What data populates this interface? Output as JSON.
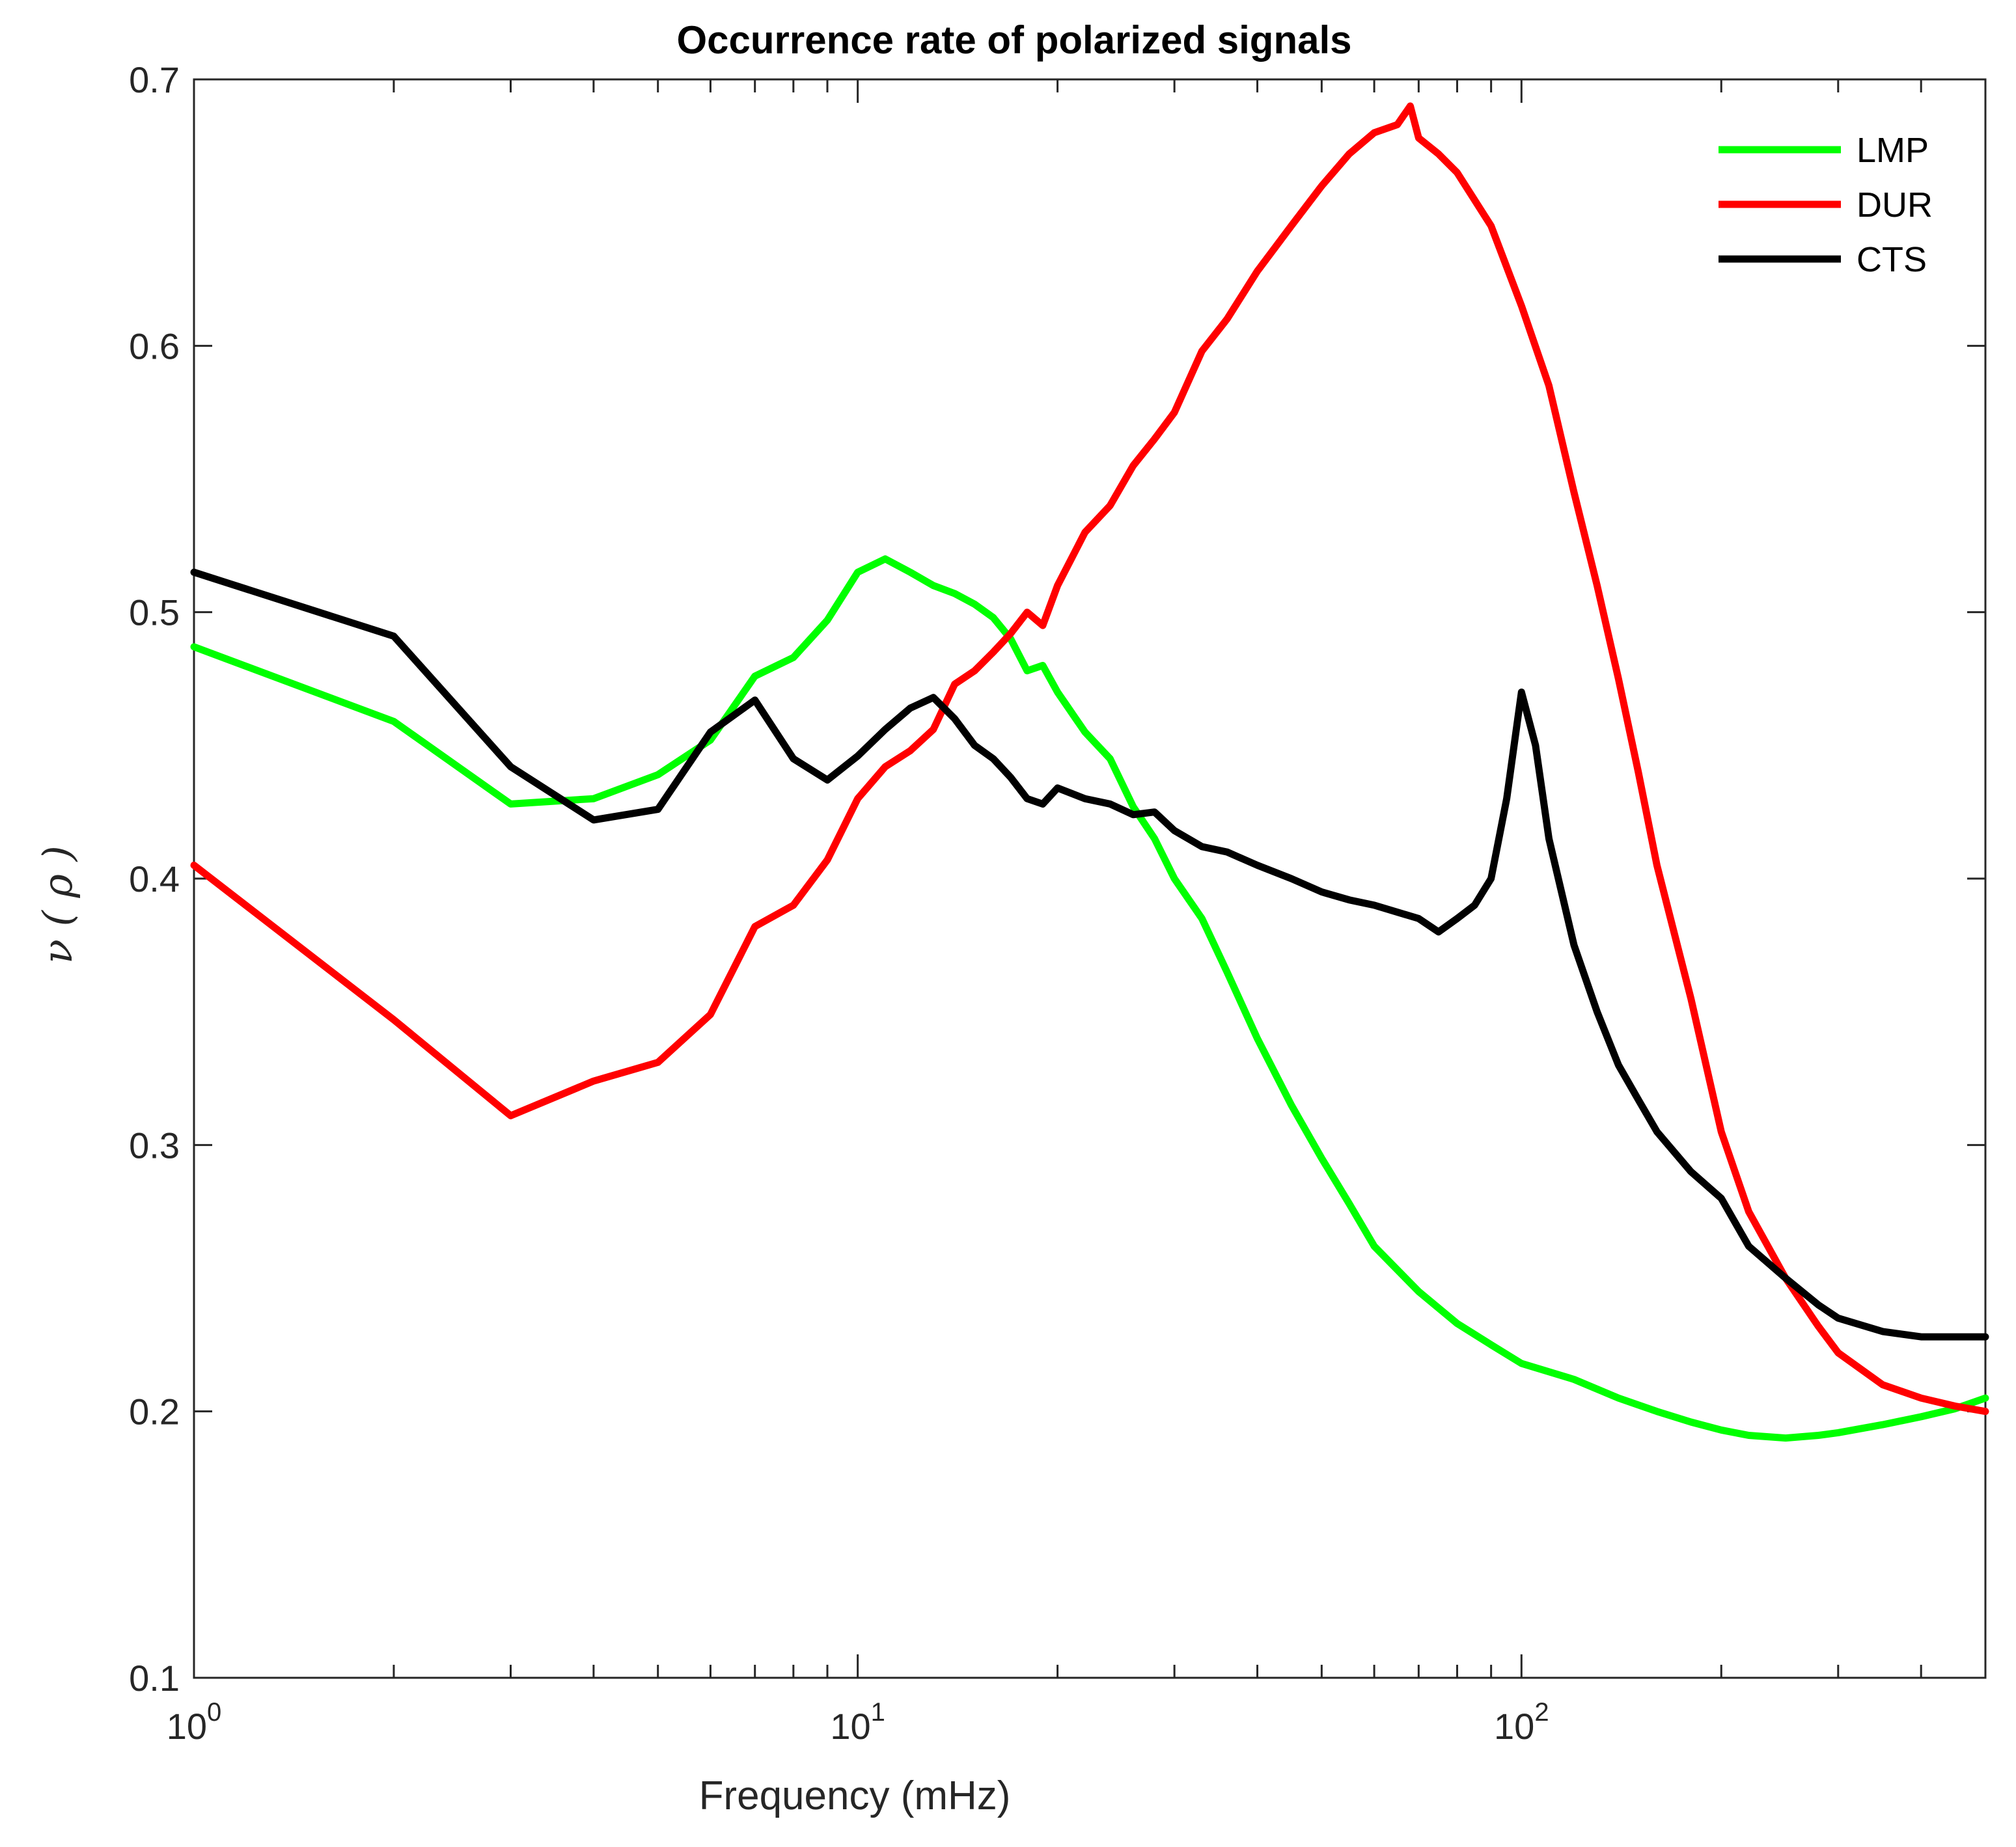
{
  "chart_data": {
    "type": "line",
    "title": "Occurrence rate of polarized signals",
    "xlabel": "Frequency (mHz)",
    "ylabel": "ν ( ρ )",
    "xscale": "log",
    "xlim": [
      1,
      500
    ],
    "ylim": [
      0.1,
      0.7
    ],
    "grid": false,
    "legend_location": "top-right",
    "x_ticks": [
      {
        "value": 1,
        "base": "10",
        "exp": "0"
      },
      {
        "value": 10,
        "base": "10",
        "exp": "1"
      },
      {
        "value": 100,
        "base": "10",
        "exp": "2"
      }
    ],
    "y_ticks": [
      {
        "value": 0.1,
        "label": "0.1"
      },
      {
        "value": 0.2,
        "label": "0.2"
      },
      {
        "value": 0.3,
        "label": "0.3"
      },
      {
        "value": 0.4,
        "label": "0.4"
      },
      {
        "value": 0.5,
        "label": "0.5"
      },
      {
        "value": 0.6,
        "label": "0.6"
      },
      {
        "value": 0.7,
        "label": "0.7"
      }
    ],
    "series": [
      {
        "name": "LMP",
        "color": "#00ff00",
        "x": [
          1,
          2,
          3,
          4,
          5,
          6,
          7,
          8,
          9,
          10,
          11,
          12,
          13,
          14,
          15,
          16,
          17,
          18,
          19,
          20,
          22,
          24,
          26,
          28,
          30,
          33,
          36,
          40,
          45,
          50,
          55,
          60,
          70,
          80,
          90,
          100,
          120,
          140,
          160,
          180,
          200,
          220,
          250,
          280,
          300,
          350,
          400,
          450,
          500
        ],
        "y": [
          0.487,
          0.459,
          0.428,
          0.43,
          0.439,
          0.452,
          0.476,
          0.483,
          0.497,
          0.515,
          0.52,
          0.515,
          0.51,
          0.507,
          0.503,
          0.498,
          0.49,
          0.478,
          0.48,
          0.47,
          0.455,
          0.445,
          0.427,
          0.415,
          0.4,
          0.385,
          0.365,
          0.34,
          0.315,
          0.295,
          0.278,
          0.262,
          0.245,
          0.233,
          0.225,
          0.218,
          0.212,
          0.205,
          0.2,
          0.196,
          0.193,
          0.191,
          0.19,
          0.191,
          0.192,
          0.195,
          0.198,
          0.201,
          0.205
        ]
      },
      {
        "name": "DUR",
        "color": "#ff0000",
        "x": [
          1,
          2,
          3,
          4,
          5,
          6,
          7,
          8,
          9,
          10,
          11,
          12,
          13,
          14,
          15,
          16,
          17,
          18,
          19,
          20,
          22,
          24,
          26,
          28,
          30,
          33,
          36,
          40,
          45,
          50,
          55,
          60,
          65,
          68,
          70,
          75,
          80,
          90,
          100,
          110,
          120,
          130,
          140,
          150,
          160,
          180,
          200,
          220,
          250,
          280,
          300,
          350,
          400,
          450,
          500
        ],
        "y": [
          0.405,
          0.347,
          0.311,
          0.324,
          0.331,
          0.349,
          0.382,
          0.39,
          0.407,
          0.43,
          0.442,
          0.448,
          0.456,
          0.473,
          0.478,
          0.485,
          0.492,
          0.5,
          0.495,
          0.51,
          0.53,
          0.54,
          0.555,
          0.565,
          0.575,
          0.598,
          0.61,
          0.628,
          0.645,
          0.66,
          0.672,
          0.68,
          0.683,
          0.69,
          0.678,
          0.672,
          0.665,
          0.645,
          0.615,
          0.585,
          0.545,
          0.51,
          0.475,
          0.44,
          0.405,
          0.355,
          0.305,
          0.275,
          0.25,
          0.232,
          0.222,
          0.21,
          0.205,
          0.202,
          0.2
        ]
      },
      {
        "name": "CTS",
        "color": "#000000",
        "x": [
          1,
          2,
          3,
          4,
          5,
          6,
          7,
          8,
          9,
          10,
          11,
          12,
          13,
          14,
          15,
          16,
          17,
          18,
          19,
          20,
          22,
          24,
          26,
          28,
          30,
          33,
          36,
          40,
          45,
          50,
          55,
          60,
          70,
          75,
          80,
          85,
          90,
          95,
          100,
          105,
          110,
          120,
          130,
          140,
          150,
          160,
          180,
          200,
          220,
          250,
          280,
          300,
          350,
          400,
          450,
          500
        ],
        "y": [
          0.515,
          0.491,
          0.442,
          0.422,
          0.426,
          0.455,
          0.467,
          0.445,
          0.437,
          0.446,
          0.456,
          0.464,
          0.468,
          0.46,
          0.45,
          0.445,
          0.438,
          0.43,
          0.428,
          0.434,
          0.43,
          0.428,
          0.424,
          0.425,
          0.418,
          0.412,
          0.41,
          0.405,
          0.4,
          0.395,
          0.392,
          0.39,
          0.385,
          0.38,
          0.385,
          0.39,
          0.4,
          0.43,
          0.47,
          0.45,
          0.415,
          0.375,
          0.35,
          0.33,
          0.317,
          0.305,
          0.29,
          0.28,
          0.262,
          0.25,
          0.24,
          0.235,
          0.23,
          0.228,
          0.228,
          0.228
        ]
      }
    ]
  }
}
